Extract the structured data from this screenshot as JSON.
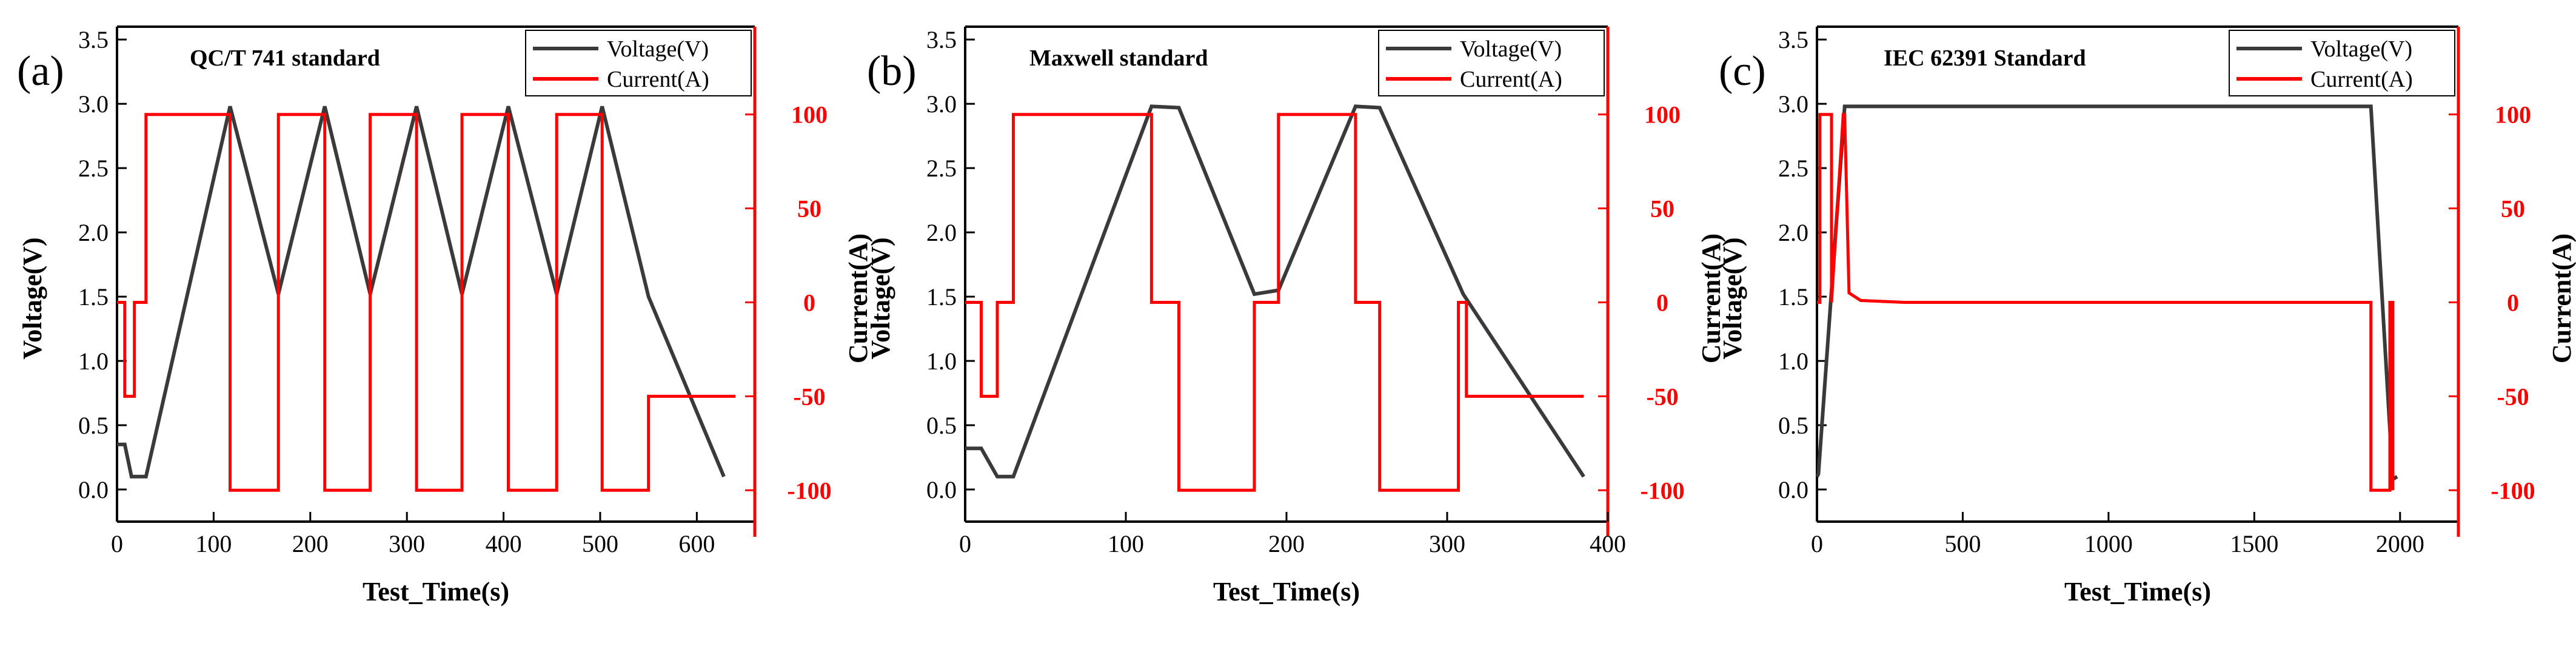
{
  "chart_data": [
    {
      "type": "line",
      "panel_label": "(a)",
      "title": "QC/T 741 standard",
      "xlabel": "Test_Time(s)",
      "ylabel_left": "Voltage(V)",
      "ylabel_right": "Current(A)",
      "xlim": [
        0,
        660
      ],
      "ylim_left": [
        -0.25,
        3.6
      ],
      "ylim_right": [
        -116.7,
        146.7
      ],
      "x_ticks": [
        "0",
        "100",
        "200",
        "300",
        "400",
        "500",
        "600"
      ],
      "y_ticks_left": [
        "0.0",
        "0.5",
        "1.0",
        "1.5",
        "2.0",
        "2.5",
        "3.0",
        "3.5"
      ],
      "y_ticks_right": [
        "-100",
        "-50",
        "0",
        "50",
        "100"
      ],
      "legend": [
        "Voltage(V)",
        "Current(A)"
      ],
      "legend_position": "top-right",
      "colors": {
        "voltage": "#3a3a3a",
        "current": "#ff0000"
      },
      "series": [
        {
          "name": "Voltage(V)",
          "axis": "left",
          "x": [
            0,
            8,
            15,
            30,
            117,
            167,
            215,
            262,
            310,
            357,
            405,
            455,
            502,
            550,
            628
          ],
          "y": [
            0.35,
            0.35,
            0.1,
            0.1,
            2.98,
            1.52,
            2.98,
            1.52,
            2.98,
            1.52,
            2.98,
            1.52,
            2.98,
            1.5,
            0.1
          ]
        },
        {
          "name": "Current(A)",
          "axis": "right",
          "x": [
            0,
            8,
            8,
            18,
            18,
            30,
            30,
            117,
            117,
            167,
            167,
            215,
            215,
            262,
            262,
            310,
            310,
            357,
            357,
            405,
            405,
            455,
            455,
            502,
            502,
            550,
            550,
            640
          ],
          "y": [
            0,
            0,
            -50,
            -50,
            0,
            0,
            100,
            100,
            -100,
            -100,
            100,
            100,
            -100,
            -100,
            100,
            100,
            -100,
            -100,
            100,
            100,
            -100,
            -100,
            100,
            100,
            -100,
            -100,
            -50,
            -50
          ]
        }
      ]
    },
    {
      "type": "line",
      "panel_label": "(b)",
      "title": "Maxwell standard",
      "xlabel": "Test_Time(s)",
      "ylabel_left": "Voltage(V)",
      "ylabel_right": "Current(A)",
      "xlim": [
        0,
        400
      ],
      "ylim_left": [
        -0.25,
        3.6
      ],
      "ylim_right": [
        -116.7,
        146.7
      ],
      "x_ticks": [
        "0",
        "100",
        "200",
        "300",
        "400"
      ],
      "y_ticks_left": [
        "0.0",
        "0.5",
        "1.0",
        "1.5",
        "2.0",
        "2.5",
        "3.0",
        "3.5"
      ],
      "y_ticks_right": [
        "-100",
        "-50",
        "0",
        "50",
        "100"
      ],
      "legend": [
        "Voltage(V)",
        "Current(A)"
      ],
      "legend_position": "top-right",
      "colors": {
        "voltage": "#3a3a3a",
        "current": "#ff0000"
      },
      "series": [
        {
          "name": "Voltage(V)",
          "axis": "left",
          "x": [
            0,
            10,
            20,
            30,
            116,
            133,
            180,
            195,
            243,
            258,
            310,
            385
          ],
          "y": [
            0.32,
            0.32,
            0.1,
            0.1,
            2.98,
            2.97,
            1.52,
            1.55,
            2.98,
            2.97,
            1.52,
            0.1
          ]
        },
        {
          "name": "Current(A)",
          "axis": "right",
          "x": [
            0,
            10,
            10,
            20,
            20,
            30,
            30,
            116,
            116,
            133,
            133,
            180,
            180,
            195,
            195,
            243,
            243,
            258,
            258,
            307,
            307,
            312,
            312,
            385
          ],
          "y": [
            0,
            0,
            -50,
            -50,
            0,
            0,
            100,
            100,
            0,
            0,
            -100,
            -100,
            0,
            0,
            100,
            100,
            0,
            0,
            -100,
            -100,
            0,
            0,
            -50,
            -50
          ]
        }
      ]
    },
    {
      "type": "line",
      "panel_label": "(c)",
      "title": "IEC 62391 Standard",
      "xlabel": "Test_Time(s)",
      "ylabel_left": "Voltage(V)",
      "ylabel_right": "Current(A)",
      "xlim": [
        0,
        2200
      ],
      "ylim_left": [
        -0.25,
        3.6
      ],
      "ylim_right": [
        -116.7,
        146.7
      ],
      "x_ticks": [
        "0",
        "500",
        "1000",
        "1500",
        "2000"
      ],
      "y_ticks_left": [
        "0.0",
        "0.5",
        "1.0",
        "1.5",
        "2.0",
        "2.5",
        "3.0",
        "3.5"
      ],
      "y_ticks_right": [
        "-100",
        "-50",
        "0",
        "50",
        "100"
      ],
      "legend": [
        "Voltage(V)",
        "Current(A)"
      ],
      "legend_position": "top-right",
      "colors": {
        "voltage": "#3a3a3a",
        "current": "#ff0000"
      },
      "series": [
        {
          "name": "Voltage(V)",
          "axis": "left",
          "x": [
            0,
            5,
            95,
            1900,
            1975,
            1990
          ],
          "y": [
            0.1,
            0.12,
            2.98,
            2.98,
            0.08,
            0.1
          ]
        },
        {
          "name": "Current(A)",
          "axis": "right",
          "x": [
            0,
            10,
            10,
            50,
            50,
            90,
            95,
            110,
            150,
            300,
            1900,
            1900,
            1965,
            1965,
            1975,
            1975
          ],
          "y": [
            0,
            0,
            100,
            100,
            0,
            100,
            100,
            5,
            1,
            0,
            0,
            -100,
            -100,
            0,
            0,
            -100
          ]
        }
      ]
    }
  ]
}
